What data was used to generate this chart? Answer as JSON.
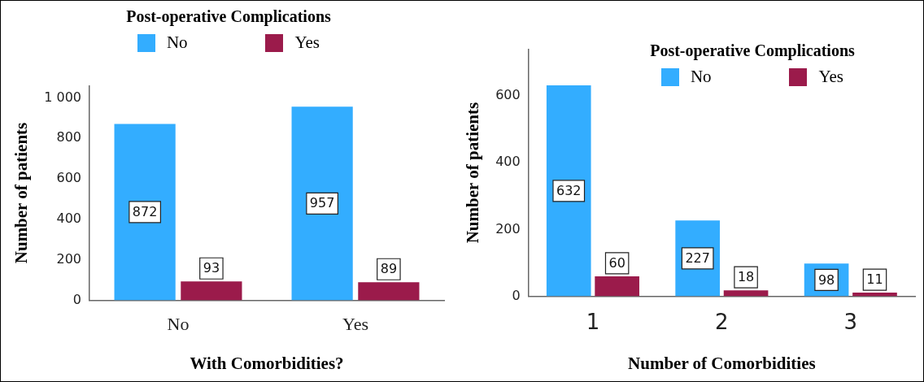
{
  "chart_data": [
    {
      "type": "bar",
      "legend_title": "Post-operative Complications",
      "xlabel": "With Comorbidities?",
      "ylabel": "Number of patients",
      "categories": [
        "No",
        "Yes"
      ],
      "series": [
        {
          "name": "No",
          "color": "#33adff",
          "values": [
            872,
            957
          ]
        },
        {
          "name": "Yes",
          "color": "#9b1b4b",
          "values": [
            93,
            89
          ]
        }
      ],
      "ylim": [
        0,
        1060
      ],
      "yticks": [
        0,
        200,
        400,
        600,
        800,
        {
          "value": 1000,
          "label": "1 000"
        }
      ],
      "grid": false,
      "legend": "top",
      "data_labels": true
    },
    {
      "type": "bar",
      "legend_title": "Post-operative Complications",
      "xlabel": "Number of Comorbidities",
      "ylabel": "Number of patients",
      "categories": [
        "1",
        "2",
        "3"
      ],
      "series": [
        {
          "name": "No",
          "color": "#33adff",
          "values": [
            632,
            227,
            98
          ]
        },
        {
          "name": "Yes",
          "color": "#9b1b4b",
          "values": [
            60,
            18,
            11
          ]
        }
      ],
      "ylim": [
        0,
        740
      ],
      "yticks": [
        0,
        200,
        400,
        600
      ],
      "grid": false,
      "legend": "top right",
      "data_labels": true
    }
  ]
}
